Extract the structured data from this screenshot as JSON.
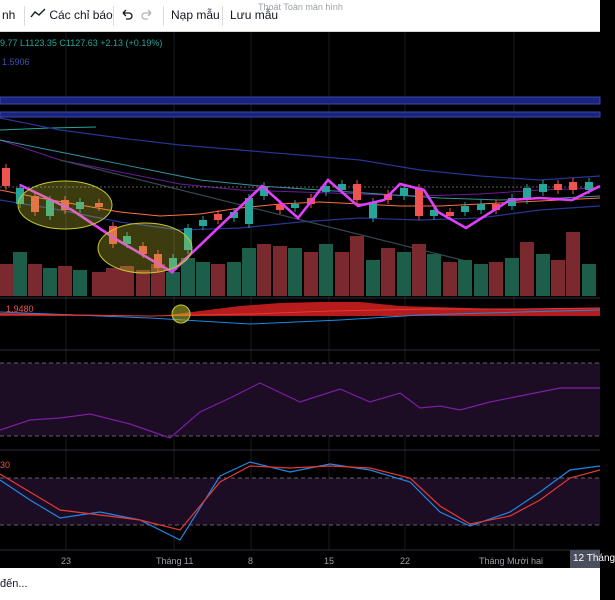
{
  "toolbar": {
    "layout_label": "nh",
    "indicators_label": "Các chỉ báo",
    "template_label": "Nạp mẫu",
    "save_label": "Lưu mẫu",
    "fullscreen_tooltip": "Thoát Toàn màn hình"
  },
  "legend": {
    "ohlc": "9.77  L1123.35  C1127.63",
    "change": "+2.13 (+0.19%)",
    "indicator_value": "1.5906",
    "macd_value": "1.9480",
    "stoch_value": "30"
  },
  "x_axis": {
    "labels": [
      "23",
      "Tháng 11",
      "8",
      "15",
      "22",
      "Tháng Mười hai"
    ],
    "current_label": "12 Tháng"
  },
  "status_text": "đến...",
  "colors": {
    "up": "#26a69a",
    "down": "#ef5350",
    "zigzag": "#e040fb",
    "highlight": "#c8c832"
  }
}
